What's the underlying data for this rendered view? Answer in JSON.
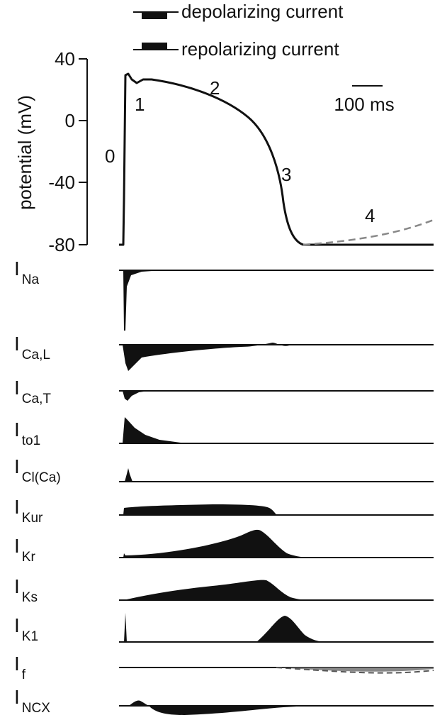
{
  "legend": {
    "depolarizing_label": "depolarizing current",
    "repolarizing_label": "repolarizing current"
  },
  "action_potential": {
    "ylabel": "potential (mV)",
    "yticks": [
      "40",
      "0",
      "-40",
      "-80"
    ],
    "scale_bar_label": "100 ms",
    "phase_labels": [
      "0",
      "1",
      "2",
      "3",
      "4"
    ]
  },
  "currents": [
    {
      "main": "I",
      "sub": "Na"
    },
    {
      "main": "I",
      "sub": "Ca,L"
    },
    {
      "main": "I",
      "sub": "Ca,T"
    },
    {
      "main": "I",
      "sub": "to1"
    },
    {
      "main": "I",
      "sub": "Cl(Ca)"
    },
    {
      "main": "I",
      "sub": "Kur"
    },
    {
      "main": "I",
      "sub": "Kr"
    },
    {
      "main": "I",
      "sub": "Ks"
    },
    {
      "main": "I",
      "sub": "K1"
    },
    {
      "main": "I",
      "sub": "f"
    },
    {
      "main": "I",
      "sub": "NCX"
    }
  ],
  "colors": {
    "ink": "#111111",
    "dashed": "#888888"
  }
}
